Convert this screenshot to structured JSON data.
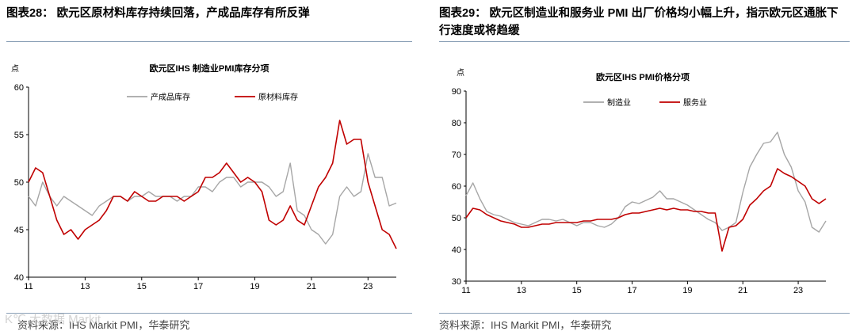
{
  "panels": [
    {
      "title": "图表28：  欧元区原材料库存持续回落，产成品库存有所反弹",
      "source": "资料来源：IHS Markit PMI，华泰研究"
    },
    {
      "title": "图表29：  欧元区制造业和服务业 PMI 出厂价格均小幅上升，指示欧元区通胀下行速度或将趋缓",
      "source": "资料来源：IHS Markit PMI，华泰研究"
    }
  ],
  "watermark": "K℃ 大数据 Markit",
  "chart_data": [
    {
      "type": "line",
      "title": "欧元区IHS 制造业PMI库存分项",
      "unit_label": "点",
      "x_range": [
        2011,
        2024
      ],
      "x_ticks": [
        "11",
        "13",
        "15",
        "17",
        "19",
        "21",
        "23"
      ],
      "x_tick_values": [
        2011,
        2013,
        2015,
        2017,
        2019,
        2021,
        2023
      ],
      "ylim": [
        40,
        60
      ],
      "y_ticks": [
        40,
        45,
        50,
        55,
        60
      ],
      "legend_position": "top",
      "colors": {
        "finished": "#a6a6a6",
        "raw": "#c00000"
      },
      "series": [
        {
          "name": "产成品库存",
          "x": [
            2011.0,
            2011.25,
            2011.5,
            2011.75,
            2012.0,
            2012.25,
            2012.5,
            2012.75,
            2013.0,
            2013.25,
            2013.5,
            2013.75,
            2014.0,
            2014.25,
            2014.5,
            2014.75,
            2015.0,
            2015.25,
            2015.5,
            2015.75,
            2016.0,
            2016.25,
            2016.5,
            2016.75,
            2017.0,
            2017.25,
            2017.5,
            2017.75,
            2018.0,
            2018.25,
            2018.5,
            2018.75,
            2019.0,
            2019.25,
            2019.5,
            2019.75,
            2020.0,
            2020.25,
            2020.5,
            2020.75,
            2021.0,
            2021.25,
            2021.5,
            2021.75,
            2022.0,
            2022.25,
            2022.5,
            2022.75,
            2023.0,
            2023.25,
            2023.5,
            2023.75,
            2024.0
          ],
          "values": [
            48.5,
            47.5,
            50.0,
            48.5,
            47.5,
            48.5,
            48.0,
            47.5,
            47.0,
            46.5,
            47.5,
            48.0,
            48.5,
            48.5,
            48.0,
            48.5,
            48.5,
            49.0,
            48.5,
            48.5,
            48.5,
            48.0,
            48.5,
            48.5,
            49.5,
            49.5,
            49.0,
            50.0,
            50.5,
            50.5,
            49.5,
            50.0,
            50.0,
            50.0,
            49.5,
            48.5,
            49.0,
            52.0,
            47.0,
            46.5,
            45.0,
            44.5,
            43.5,
            44.5,
            48.5,
            49.5,
            48.5,
            49.0,
            53.0,
            50.5,
            50.5,
            47.5,
            47.8
          ]
        },
        {
          "name": "原材料库存",
          "x": [
            2011.0,
            2011.25,
            2011.5,
            2011.75,
            2012.0,
            2012.25,
            2012.5,
            2012.75,
            2013.0,
            2013.25,
            2013.5,
            2013.75,
            2014.0,
            2014.25,
            2014.5,
            2014.75,
            2015.0,
            2015.25,
            2015.5,
            2015.75,
            2016.0,
            2016.25,
            2016.5,
            2016.75,
            2017.0,
            2017.25,
            2017.5,
            2017.75,
            2018.0,
            2018.25,
            2018.5,
            2018.75,
            2019.0,
            2019.25,
            2019.5,
            2019.75,
            2020.0,
            2020.25,
            2020.5,
            2020.75,
            2021.0,
            2021.25,
            2021.5,
            2021.75,
            2022.0,
            2022.25,
            2022.5,
            2022.75,
            2023.0,
            2023.25,
            2023.5,
            2023.75,
            2024.0
          ],
          "values": [
            50.0,
            51.5,
            51.0,
            48.5,
            46.0,
            44.5,
            45.0,
            44.0,
            45.0,
            45.5,
            46.0,
            47.0,
            48.5,
            48.5,
            48.0,
            49.0,
            48.5,
            48.0,
            48.0,
            48.5,
            48.5,
            48.5,
            48.0,
            48.5,
            49.0,
            50.5,
            50.5,
            51.0,
            52.0,
            51.0,
            50.0,
            50.5,
            50.0,
            49.0,
            46.0,
            45.5,
            46.0,
            47.5,
            46.0,
            45.5,
            47.5,
            49.5,
            50.5,
            52.0,
            56.5,
            54.0,
            54.5,
            54.5,
            50.0,
            47.5,
            45.0,
            44.5,
            43.0
          ]
        }
      ]
    },
    {
      "type": "line",
      "title": "欧元区IHS PMI价格分项",
      "unit_label": "点",
      "x_range": [
        2011,
        2024
      ],
      "x_ticks": [
        "11",
        "13",
        "15",
        "17",
        "19",
        "21",
        "23"
      ],
      "x_tick_values": [
        2011,
        2013,
        2015,
        2017,
        2019,
        2021,
        2023
      ],
      "ylim": [
        30,
        90
      ],
      "y_ticks": [
        30,
        40,
        50,
        60,
        70,
        80,
        90
      ],
      "legend_position": "top-left",
      "colors": {
        "manufacturing": "#a6a6a6",
        "services": "#c00000"
      },
      "series": [
        {
          "name": "制造业",
          "x": [
            2011.0,
            2011.25,
            2011.5,
            2011.75,
            2012.0,
            2012.25,
            2012.5,
            2012.75,
            2013.0,
            2013.25,
            2013.5,
            2013.75,
            2014.0,
            2014.25,
            2014.5,
            2014.75,
            2015.0,
            2015.25,
            2015.5,
            2015.75,
            2016.0,
            2016.25,
            2016.5,
            2016.75,
            2017.0,
            2017.25,
            2017.5,
            2017.75,
            2018.0,
            2018.25,
            2018.5,
            2018.75,
            2019.0,
            2019.25,
            2019.5,
            2019.75,
            2020.0,
            2020.25,
            2020.5,
            2020.75,
            2021.0,
            2021.25,
            2021.5,
            2021.75,
            2022.0,
            2022.25,
            2022.5,
            2022.75,
            2023.0,
            2023.25,
            2023.5,
            2023.75,
            2024.0
          ],
          "values": [
            57.0,
            61.0,
            56.0,
            52.0,
            51.0,
            50.5,
            49.5,
            48.5,
            48.0,
            47.5,
            48.5,
            49.5,
            49.5,
            49.0,
            49.5,
            48.5,
            47.5,
            48.5,
            48.5,
            47.5,
            47.0,
            48.0,
            50.0,
            53.5,
            55.0,
            54.5,
            55.5,
            56.5,
            58.5,
            56.0,
            56.0,
            55.0,
            54.0,
            52.5,
            51.0,
            49.5,
            48.5,
            46.0,
            47.0,
            48.5,
            58.0,
            66.0,
            70.0,
            73.5,
            74.0,
            77.0,
            70.0,
            66.0,
            58.5,
            55.0,
            47.0,
            45.5,
            49.0
          ]
        },
        {
          "name": "服务业",
          "x": [
            2011.0,
            2011.25,
            2011.5,
            2011.75,
            2012.0,
            2012.25,
            2012.5,
            2012.75,
            2013.0,
            2013.25,
            2013.5,
            2013.75,
            2014.0,
            2014.25,
            2014.5,
            2014.75,
            2015.0,
            2015.25,
            2015.5,
            2015.75,
            2016.0,
            2016.25,
            2016.5,
            2016.75,
            2017.0,
            2017.25,
            2017.5,
            2017.75,
            2018.0,
            2018.25,
            2018.5,
            2018.75,
            2019.0,
            2019.25,
            2019.5,
            2019.75,
            2020.0,
            2020.25,
            2020.5,
            2020.75,
            2021.0,
            2021.25,
            2021.5,
            2021.75,
            2022.0,
            2022.25,
            2022.5,
            2022.75,
            2023.0,
            2023.25,
            2023.5,
            2023.75,
            2024.0
          ],
          "values": [
            50.0,
            53.0,
            52.5,
            51.0,
            50.0,
            49.0,
            48.5,
            48.0,
            47.0,
            47.0,
            47.5,
            48.0,
            48.0,
            48.5,
            48.5,
            48.5,
            48.5,
            49.0,
            49.0,
            49.5,
            49.5,
            49.5,
            50.0,
            51.0,
            51.5,
            51.5,
            52.0,
            52.5,
            53.0,
            52.5,
            53.0,
            52.5,
            52.5,
            52.0,
            52.0,
            51.5,
            51.5,
            39.5,
            47.0,
            47.5,
            49.5,
            54.0,
            56.0,
            58.5,
            60.0,
            65.5,
            64.0,
            63.0,
            61.5,
            60.0,
            56.0,
            54.5,
            56.0
          ]
        }
      ]
    }
  ]
}
